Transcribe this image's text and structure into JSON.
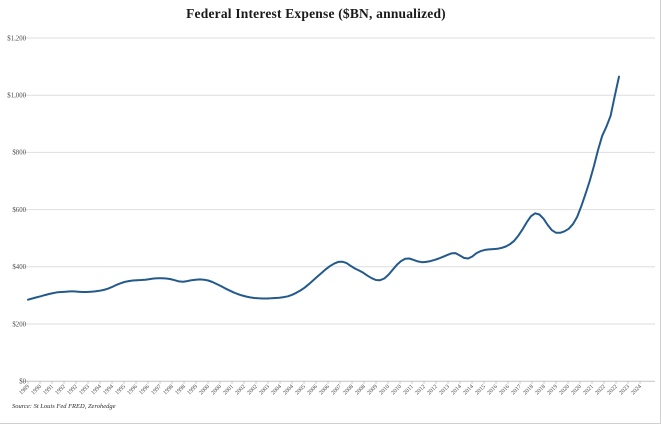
{
  "title": "Federal Interest Expense ($BN, annualized)",
  "source_note": "Source: St Louis Fed FRED, Zerohedge",
  "colors": {
    "line": "#235a8b",
    "grid": "#dedede",
    "axis": "#c4c4c4",
    "tick": "#b8b8b8",
    "tick_label": "#4a4a4a",
    "title": "#1a1a1a"
  },
  "chart_data": {
    "type": "line",
    "title": "Federal Interest Expense ($BN, annualized)",
    "xlabel": "",
    "ylabel": "",
    "ylim": [
      0,
      1200
    ],
    "grid": "horizontal",
    "legend": "none",
    "y_tick_values": [
      0,
      200,
      400,
      600,
      800,
      1000,
      1200
    ],
    "y_tick_labels": [
      "$0",
      "$200",
      "$400",
      "$600",
      "$800",
      "$1,000",
      "$1,200"
    ],
    "x_tick_labels": [
      "1989",
      "1990",
      "1991",
      "1992",
      "1992",
      "1993",
      "1994",
      "1994",
      "1995",
      "1996",
      "1996",
      "1997",
      "1998",
      "1998",
      "1999",
      "2000",
      "2000",
      "2001",
      "2002",
      "2002",
      "2003",
      "2004",
      "2004",
      "2005",
      "2006",
      "2006",
      "2007",
      "2008",
      "2008",
      "2009",
      "2010",
      "2010",
      "2011",
      "2012",
      "2012",
      "2013",
      "2014",
      "2014",
      "2015",
      "2016",
      "2016",
      "2017",
      "2018",
      "2018",
      "2019",
      "2020",
      "2020",
      "2021",
      "2022",
      "2022",
      "2023",
      "2024"
    ],
    "series": [
      {
        "name": "Federal Interest Expense ($BN, annualized)",
        "frequency": "quarterly",
        "x_start_year": 1989.0,
        "x_end_year": 2024.25,
        "values": [
          285,
          289,
          293,
          297,
          301,
          305,
          308,
          311,
          312,
          313,
          314,
          314,
          313,
          312,
          312,
          313,
          314,
          316,
          319,
          323,
          329,
          336,
          342,
          347,
          350,
          352,
          353,
          354,
          355,
          357,
          359,
          360,
          360,
          359,
          357,
          353,
          349,
          348,
          350,
          353,
          355,
          356,
          355,
          352,
          347,
          340,
          333,
          325,
          318,
          311,
          305,
          300,
          296,
          293,
          291,
          290,
          289,
          289,
          290,
          291,
          292,
          294,
          297,
          302,
          309,
          317,
          327,
          339,
          352,
          365,
          378,
          391,
          402,
          411,
          417,
          418,
          413,
          403,
          394,
          387,
          379,
          369,
          360,
          354,
          353,
          359,
          372,
          390,
          407,
          420,
          428,
          429,
          424,
          419,
          416,
          417,
          420,
          424,
          429,
          435,
          441,
          447,
          448,
          440,
          431,
          429,
          436,
          448,
          455,
          459,
          461,
          462,
          463,
          466,
          471,
          479,
          491,
          509,
          531,
          556,
          577,
          587,
          583,
          568,
          546,
          528,
          519,
          519,
          524,
          533,
          549,
          574,
          612,
          655,
          700,
          752,
          808,
          858,
          890,
          928,
          998,
          1065
        ]
      }
    ]
  }
}
